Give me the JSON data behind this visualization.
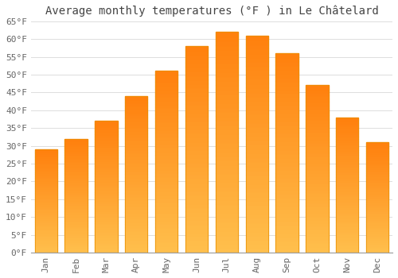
{
  "title": "Average monthly temperatures (°F ) in Le Châtelard",
  "months": [
    "Jan",
    "Feb",
    "Mar",
    "Apr",
    "May",
    "Jun",
    "Jul",
    "Aug",
    "Sep",
    "Oct",
    "Nov",
    "Dec"
  ],
  "values": [
    29,
    32,
    37,
    44,
    51,
    58,
    62,
    61,
    56,
    47,
    38,
    31
  ],
  "bar_color_top": "#FFB300",
  "bar_color_bottom": "#FFDA80",
  "bar_edge_color": "#E89000",
  "background_color": "#FFFFFF",
  "plot_bg_color": "#FFFFFF",
  "grid_color": "#DDDDDD",
  "ylim": [
    0,
    65
  ],
  "yticks": [
    0,
    5,
    10,
    15,
    20,
    25,
    30,
    35,
    40,
    45,
    50,
    55,
    60,
    65
  ],
  "ytick_labels": [
    "0°F",
    "5°F",
    "10°F",
    "15°F",
    "20°F",
    "25°F",
    "30°F",
    "35°F",
    "40°F",
    "45°F",
    "50°F",
    "55°F",
    "60°F",
    "65°F"
  ],
  "title_fontsize": 10,
  "tick_fontsize": 8,
  "title_color": "#444444",
  "tick_color": "#666666",
  "bar_width": 0.75
}
